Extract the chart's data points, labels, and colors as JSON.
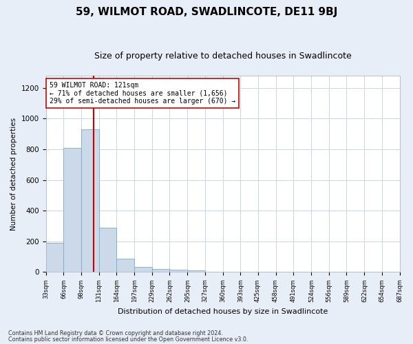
{
  "title": "59, WILMOT ROAD, SWADLINCOTE, DE11 9BJ",
  "subtitle": "Size of property relative to detached houses in Swadlincote",
  "xlabel": "Distribution of detached houses by size in Swadlincote",
  "ylabel": "Number of detached properties",
  "footnote1": "Contains HM Land Registry data © Crown copyright and database right 2024.",
  "footnote2": "Contains public sector information licensed under the Open Government Licence v3.0.",
  "bin_edges": [
    33,
    66,
    98,
    131,
    164,
    197,
    229,
    262,
    295,
    327,
    360,
    393,
    425,
    458,
    491,
    524,
    556,
    589,
    622,
    654,
    687
  ],
  "bar_heights": [
    190,
    810,
    930,
    290,
    85,
    35,
    20,
    15,
    10,
    0,
    0,
    0,
    0,
    0,
    0,
    0,
    0,
    0,
    0,
    0
  ],
  "bar_color": "#ccd9e8",
  "bar_edge_color": "#7aaac8",
  "vline_x": 121,
  "vline_color": "#cc0000",
  "annotation_text": "59 WILMOT ROAD: 121sqm\n← 71% of detached houses are smaller (1,656)\n29% of semi-detached houses are larger (670) →",
  "annotation_box_color": "#ffffff",
  "annotation_box_edge": "#cc0000",
  "ylim": [
    0,
    1280
  ],
  "yticks": [
    0,
    200,
    400,
    600,
    800,
    1000,
    1200
  ],
  "grid_color": "#c8d4e8",
  "bg_figure": "#e8eef8",
  "bg_axes": "#ffffff",
  "title_fontsize": 11,
  "subtitle_fontsize": 9
}
